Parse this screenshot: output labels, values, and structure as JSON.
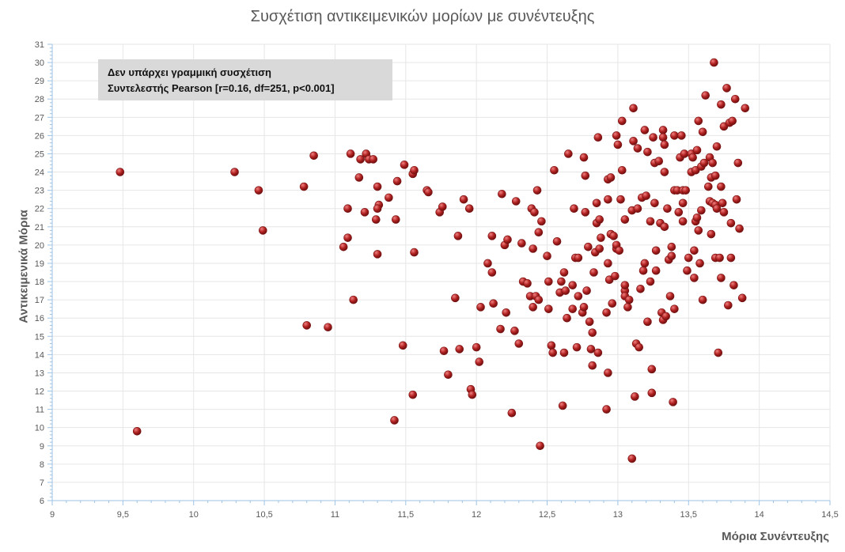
{
  "chart_data": {
    "type": "scatter",
    "title": "Συσχέτιση αντικειμενικών μορίων με συνέντευξης",
    "xlabel": "Μόρια Συνέντευξης",
    "ylabel": "Αντικειμενικά Μόρια",
    "xlim": [
      9,
      14.5
    ],
    "ylim": [
      6,
      31
    ],
    "x_ticks": [
      "9",
      "9,5",
      "10",
      "10,5",
      "11",
      "11,5",
      "12",
      "12,5",
      "13",
      "13,5",
      "14",
      "14,5"
    ],
    "y_ticks": [
      "6",
      "7",
      "8",
      "9",
      "10",
      "11",
      "12",
      "13",
      "14",
      "15",
      "16",
      "17",
      "18",
      "19",
      "20",
      "21",
      "22",
      "23",
      "24",
      "25",
      "26",
      "27",
      "28",
      "29",
      "30",
      "31"
    ],
    "grid": true,
    "legend": "none",
    "annotation": {
      "line1": "Δεν υπάρχει γραμμική συσχέτιση",
      "line2": "Συντελεστής Pearson [r=0.16, df=251, p<0.001]"
    },
    "colors": {
      "marker": "#b22222",
      "marker_highlight": "#f08080",
      "grid": "#e6e6e6",
      "axis": "#9dc3e6"
    },
    "points": [
      [
        9.48,
        24.0
      ],
      [
        9.6,
        9.8
      ],
      [
        10.29,
        24.0
      ],
      [
        10.46,
        23.0
      ],
      [
        10.49,
        20.8
      ],
      [
        10.78,
        23.2
      ],
      [
        10.8,
        15.6
      ],
      [
        10.85,
        24.9
      ],
      [
        10.95,
        15.5
      ],
      [
        11.06,
        19.9
      ],
      [
        11.09,
        22.0
      ],
      [
        11.09,
        20.4
      ],
      [
        11.11,
        25.0
      ],
      [
        11.13,
        17.0
      ],
      [
        11.17,
        23.7
      ],
      [
        11.18,
        24.7
      ],
      [
        11.21,
        21.8
      ],
      [
        11.22,
        25.0
      ],
      [
        11.24,
        24.7
      ],
      [
        11.27,
        24.7
      ],
      [
        11.29,
        21.4
      ],
      [
        11.3,
        19.5
      ],
      [
        11.3,
        23.2
      ],
      [
        11.31,
        22.2
      ],
      [
        11.3,
        22.0
      ],
      [
        11.38,
        22.6
      ],
      [
        11.42,
        10.4
      ],
      [
        11.43,
        21.4
      ],
      [
        11.44,
        23.5
      ],
      [
        11.48,
        14.5
      ],
      [
        11.49,
        24.4
      ],
      [
        11.55,
        11.8
      ],
      [
        11.56,
        19.6
      ],
      [
        11.55,
        23.9
      ],
      [
        11.56,
        24.1
      ],
      [
        11.65,
        23.0
      ],
      [
        11.66,
        22.9
      ],
      [
        11.74,
        21.8
      ],
      [
        11.76,
        22.1
      ],
      [
        11.77,
        14.2
      ],
      [
        11.8,
        12.9
      ],
      [
        11.85,
        17.1
      ],
      [
        11.87,
        20.5
      ],
      [
        11.88,
        14.3
      ],
      [
        11.91,
        22.5
      ],
      [
        11.95,
        22.0
      ],
      [
        11.96,
        12.1
      ],
      [
        11.97,
        11.8
      ],
      [
        12.0,
        14.4
      ],
      [
        12.02,
        13.6
      ],
      [
        12.03,
        16.6
      ],
      [
        12.08,
        19.0
      ],
      [
        12.11,
        18.5
      ],
      [
        12.11,
        20.5
      ],
      [
        12.12,
        16.8
      ],
      [
        12.17,
        15.4
      ],
      [
        12.18,
        22.8
      ],
      [
        12.2,
        20.0
      ],
      [
        12.21,
        16.3
      ],
      [
        12.22,
        20.3
      ],
      [
        12.25,
        10.8
      ],
      [
        12.27,
        15.3
      ],
      [
        12.28,
        22.4
      ],
      [
        12.3,
        14.6
      ],
      [
        12.32,
        20.1
      ],
      [
        12.33,
        18.0
      ],
      [
        12.36,
        17.9
      ],
      [
        12.38,
        17.2
      ],
      [
        12.39,
        22.0
      ],
      [
        12.4,
        19.8
      ],
      [
        12.4,
        16.6
      ],
      [
        12.41,
        21.8
      ],
      [
        12.42,
        17.2
      ],
      [
        12.43,
        23.0
      ],
      [
        12.44,
        20.7
      ],
      [
        12.44,
        17.0
      ],
      [
        12.45,
        9.0
      ],
      [
        12.46,
        21.3
      ],
      [
        12.5,
        19.4
      ],
      [
        12.51,
        18.0
      ],
      [
        12.51,
        16.5
      ],
      [
        12.53,
        14.5
      ],
      [
        12.54,
        14.1
      ],
      [
        12.55,
        24.1
      ],
      [
        12.57,
        20.2
      ],
      [
        12.59,
        17.4
      ],
      [
        12.6,
        18.0
      ],
      [
        12.61,
        11.2
      ],
      [
        12.62,
        14.1
      ],
      [
        12.62,
        18.5
      ],
      [
        12.63,
        17.5
      ],
      [
        12.64,
        16.0
      ],
      [
        12.65,
        25.0
      ],
      [
        12.68,
        17.8
      ],
      [
        12.68,
        16.5
      ],
      [
        12.69,
        22.0
      ],
      [
        12.7,
        19.3
      ],
      [
        12.71,
        14.4
      ],
      [
        12.72,
        17.2
      ],
      [
        12.72,
        19.3
      ],
      [
        12.75,
        16.3
      ],
      [
        12.76,
        16.6
      ],
      [
        12.76,
        24.8
      ],
      [
        12.77,
        23.8
      ],
      [
        12.77,
        21.8
      ],
      [
        12.78,
        17.5
      ],
      [
        12.79,
        19.9
      ],
      [
        12.8,
        15.8
      ],
      [
        12.81,
        14.3
      ],
      [
        12.82,
        13.4
      ],
      [
        12.82,
        15.2
      ],
      [
        12.83,
        18.5
      ],
      [
        12.84,
        19.6
      ],
      [
        12.85,
        21.2
      ],
      [
        12.85,
        22.3
      ],
      [
        12.86,
        14.1
      ],
      [
        12.86,
        25.9
      ],
      [
        12.87,
        21.4
      ],
      [
        12.87,
        19.8
      ],
      [
        12.88,
        20.4
      ],
      [
        12.92,
        11.0
      ],
      [
        12.92,
        16.3
      ],
      [
        12.93,
        19.0
      ],
      [
        12.93,
        13.0
      ],
      [
        12.93,
        23.6
      ],
      [
        12.93,
        22.5
      ],
      [
        12.94,
        18.1
      ],
      [
        12.95,
        20.6
      ],
      [
        12.95,
        23.7
      ],
      [
        12.96,
        16.8
      ],
      [
        12.97,
        20.5
      ],
      [
        12.98,
        18.3
      ],
      [
        12.99,
        19.8
      ],
      [
        12.99,
        20.0
      ],
      [
        12.99,
        26.0
      ],
      [
        13.0,
        25.5
      ],
      [
        13.01,
        19.7
      ],
      [
        13.02,
        22.5
      ],
      [
        13.03,
        24.1
      ],
      [
        13.03,
        26.8
      ],
      [
        13.05,
        17.5
      ],
      [
        13.05,
        17.8
      ],
      [
        13.05,
        17.2
      ],
      [
        13.05,
        21.4
      ],
      [
        13.07,
        16.6
      ],
      [
        13.08,
        17.0
      ],
      [
        13.1,
        21.9
      ],
      [
        13.1,
        8.3
      ],
      [
        13.11,
        25.7
      ],
      [
        13.11,
        27.5
      ],
      [
        13.12,
        11.7
      ],
      [
        13.13,
        14.6
      ],
      [
        13.14,
        25.3
      ],
      [
        13.14,
        22.0
      ],
      [
        13.15,
        14.4
      ],
      [
        13.16,
        17.6
      ],
      [
        13.17,
        22.6
      ],
      [
        13.18,
        18.6
      ],
      [
        13.19,
        26.3
      ],
      [
        13.19,
        19.0
      ],
      [
        13.2,
        22.7
      ],
      [
        13.21,
        15.8
      ],
      [
        13.21,
        25.1
      ],
      [
        13.23,
        18.0
      ],
      [
        13.23,
        21.3
      ],
      [
        13.24,
        11.9
      ],
      [
        13.24,
        13.2
      ],
      [
        13.25,
        25.9
      ],
      [
        13.26,
        24.5
      ],
      [
        13.26,
        22.3
      ],
      [
        13.27,
        18.6
      ],
      [
        13.27,
        19.7
      ],
      [
        13.29,
        24.6
      ],
      [
        13.3,
        21.2
      ],
      [
        13.31,
        16.3
      ],
      [
        13.32,
        26.3
      ],
      [
        13.32,
        25.9
      ],
      [
        13.32,
        15.9
      ],
      [
        13.33,
        21.0
      ],
      [
        13.33,
        25.5
      ],
      [
        13.33,
        24.0
      ],
      [
        13.34,
        16.1
      ],
      [
        13.35,
        22.0
      ],
      [
        13.36,
        19.2
      ],
      [
        13.37,
        17.2
      ],
      [
        13.38,
        19.9
      ],
      [
        13.38,
        19.4
      ],
      [
        13.39,
        11.4
      ],
      [
        13.4,
        16.5
      ],
      [
        13.4,
        23.0
      ],
      [
        13.4,
        26.0
      ],
      [
        13.42,
        23.0
      ],
      [
        13.43,
        21.8
      ],
      [
        13.44,
        24.8
      ],
      [
        13.45,
        26.0
      ],
      [
        13.46,
        23.0
      ],
      [
        13.46,
        22.3
      ],
      [
        13.46,
        21.3
      ],
      [
        13.47,
        25.0
      ],
      [
        13.48,
        23.0
      ],
      [
        13.49,
        18.6
      ],
      [
        13.5,
        19.3
      ],
      [
        13.52,
        24.0
      ],
      [
        13.52,
        25.0
      ],
      [
        13.53,
        24.8
      ],
      [
        13.54,
        18.2
      ],
      [
        13.54,
        19.7
      ],
      [
        13.55,
        21.3
      ],
      [
        13.55,
        24.1
      ],
      [
        13.56,
        25.2
      ],
      [
        13.56,
        21.5
      ],
      [
        13.57,
        20.8
      ],
      [
        13.57,
        26.8
      ],
      [
        13.58,
        19.0
      ],
      [
        13.59,
        21.9
      ],
      [
        13.59,
        24.3
      ],
      [
        13.6,
        17.0
      ],
      [
        13.6,
        26.2
      ],
      [
        13.61,
        24.5
      ],
      [
        13.62,
        28.2
      ],
      [
        13.64,
        23.2
      ],
      [
        13.65,
        22.4
      ],
      [
        13.65,
        24.8
      ],
      [
        13.66,
        20.6
      ],
      [
        13.66,
        23.7
      ],
      [
        13.67,
        22.3
      ],
      [
        13.67,
        24.5
      ],
      [
        13.68,
        30.0
      ],
      [
        13.69,
        19.3
      ],
      [
        13.69,
        22.2
      ],
      [
        13.69,
        23.8
      ],
      [
        13.7,
        22.0
      ],
      [
        13.7,
        25.4
      ],
      [
        13.71,
        14.1
      ],
      [
        13.72,
        19.3
      ],
      [
        13.73,
        23.2
      ],
      [
        13.73,
        27.7
      ],
      [
        13.73,
        18.2
      ],
      [
        13.74,
        22.3
      ],
      [
        13.75,
        26.5
      ],
      [
        13.75,
        21.8
      ],
      [
        13.77,
        28.6
      ],
      [
        13.78,
        16.7
      ],
      [
        13.79,
        26.7
      ],
      [
        13.8,
        21.2
      ],
      [
        13.8,
        19.3
      ],
      [
        13.81,
        26.8
      ],
      [
        13.82,
        17.8
      ],
      [
        13.83,
        28.0
      ],
      [
        13.84,
        22.5
      ],
      [
        13.85,
        24.5
      ],
      [
        13.86,
        20.9
      ],
      [
        13.88,
        17.1
      ],
      [
        13.9,
        27.5
      ]
    ]
  }
}
